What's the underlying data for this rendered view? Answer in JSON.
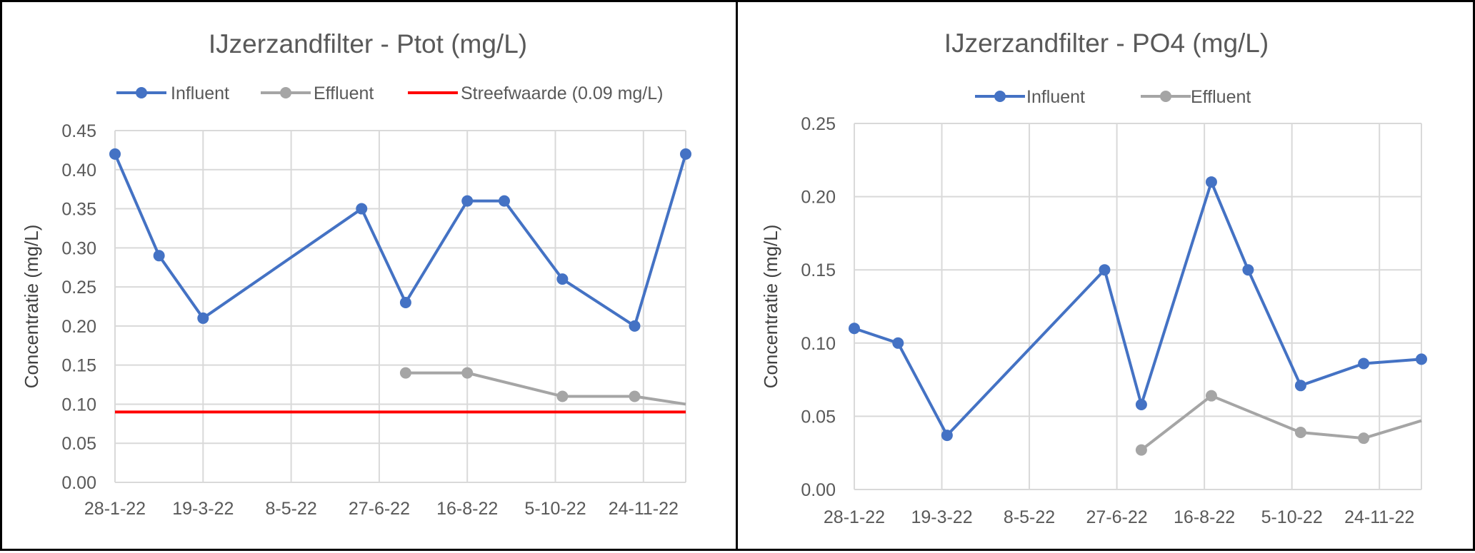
{
  "charts": [
    {
      "title": "IJzerzandfilter - Ptot (mg/L)",
      "ylabel": "Concentratie (mg/L)"
    },
    {
      "title": "IJzerzandfilter - PO4 (mg/L)",
      "ylabel": "Concentratie (mg/L)"
    }
  ],
  "chart_data": [
    {
      "type": "line",
      "title": "IJzerzandfilter - Ptot (mg/L)",
      "xlabel": "",
      "ylabel": "Concentratie (mg/L)",
      "x_axis_type": "date",
      "xlim": [
        "2022-01-28",
        "2022-12-18"
      ],
      "x_tick_labels": [
        "28-1-22",
        "19-3-22",
        "8-5-22",
        "27-6-22",
        "16-8-22",
        "5-10-22",
        "24-11-22"
      ],
      "ylim": [
        0,
        0.45
      ],
      "y_tick_labels": [
        "0.00",
        "0.05",
        "0.10",
        "0.15",
        "0.20",
        "0.25",
        "0.30",
        "0.35",
        "0.40",
        "0.45"
      ],
      "grid": true,
      "legend": "top",
      "series": [
        {
          "name": "Influent",
          "color": "#4472C4",
          "marker": "circle",
          "points": [
            {
              "x": "2022-01-28",
              "y": 0.42
            },
            {
              "x": "2022-02-22",
              "y": 0.29
            },
            {
              "x": "2022-03-19",
              "y": 0.21
            },
            {
              "x": "2022-06-17",
              "y": 0.35
            },
            {
              "x": "2022-07-12",
              "y": 0.23
            },
            {
              "x": "2022-08-16",
              "y": 0.36
            },
            {
              "x": "2022-09-06",
              "y": 0.36
            },
            {
              "x": "2022-10-09",
              "y": 0.26
            },
            {
              "x": "2022-11-19",
              "y": 0.2
            },
            {
              "x": "2022-12-18",
              "y": 0.42
            }
          ]
        },
        {
          "name": "Effluent",
          "color": "#A5A5A5",
          "marker": "circle",
          "points": [
            {
              "x": "2022-07-12",
              "y": 0.14
            },
            {
              "x": "2022-08-16",
              "y": 0.14
            },
            {
              "x": "2022-10-09",
              "y": 0.11
            },
            {
              "x": "2022-11-19",
              "y": 0.11
            },
            {
              "x": "2022-12-18",
              "y": 0.1,
              "marker": false
            }
          ]
        },
        {
          "name": "Streefwaarde (0.09 mg/L)",
          "color": "#FF0000",
          "marker": "none",
          "points": [
            {
              "x": "2022-01-28",
              "y": 0.09
            },
            {
              "x": "2022-12-18",
              "y": 0.09
            }
          ]
        }
      ]
    },
    {
      "type": "line",
      "title": "IJzerzandfilter - PO4 (mg/L)",
      "xlabel": "",
      "ylabel": "Concentratie (mg/L)",
      "x_axis_type": "date",
      "xlim": [
        "2022-01-28",
        "2022-12-18"
      ],
      "x_tick_labels": [
        "28-1-22",
        "19-3-22",
        "8-5-22",
        "27-6-22",
        "16-8-22",
        "5-10-22",
        "24-11-22"
      ],
      "ylim": [
        0,
        0.25
      ],
      "y_tick_labels": [
        "0.00",
        "0.05",
        "0.10",
        "0.15",
        "0.20",
        "0.25"
      ],
      "grid": true,
      "legend": "top",
      "series": [
        {
          "name": "Influent",
          "color": "#4472C4",
          "marker": "circle",
          "points": [
            {
              "x": "2022-01-28",
              "y": 0.11
            },
            {
              "x": "2022-02-22",
              "y": 0.1
            },
            {
              "x": "2022-03-22",
              "y": 0.037
            },
            {
              "x": "2022-06-20",
              "y": 0.15
            },
            {
              "x": "2022-07-11",
              "y": 0.058
            },
            {
              "x": "2022-08-20",
              "y": 0.21
            },
            {
              "x": "2022-09-10",
              "y": 0.15
            },
            {
              "x": "2022-10-10",
              "y": 0.071
            },
            {
              "x": "2022-11-15",
              "y": 0.086
            },
            {
              "x": "2022-12-18",
              "y": 0.089
            }
          ]
        },
        {
          "name": "Effluent",
          "color": "#A5A5A5",
          "marker": "circle",
          "points": [
            {
              "x": "2022-07-11",
              "y": 0.027
            },
            {
              "x": "2022-08-20",
              "y": 0.064
            },
            {
              "x": "2022-10-10",
              "y": 0.039
            },
            {
              "x": "2022-11-15",
              "y": 0.035
            },
            {
              "x": "2022-12-18",
              "y": 0.047,
              "marker": false
            }
          ]
        }
      ]
    }
  ]
}
